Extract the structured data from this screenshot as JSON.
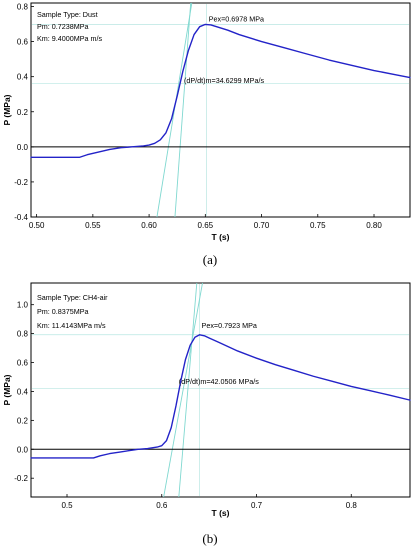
{
  "chart_data": [
    {
      "type": "line",
      "panel_label": "(a)",
      "xlabel": "T (s)",
      "ylabel": "P (MPa)",
      "xlim": [
        0.495,
        0.832
      ],
      "ylim": [
        -0.4,
        0.82
      ],
      "xticks": [
        0.5,
        0.55,
        0.6,
        0.65,
        0.7,
        0.75,
        0.8
      ],
      "xtick_labels": [
        "0.50",
        "0.55",
        "0.60",
        "0.65",
        "0.70",
        "0.75",
        "0.80"
      ],
      "yticks": [
        -0.4,
        -0.2,
        0.0,
        0.2,
        0.4,
        0.6,
        0.8
      ],
      "ytick_labels": [
        "-0.4",
        "-0.2",
        "0.0",
        "0.2",
        "0.4",
        "0.6",
        "0.8"
      ],
      "grid": false,
      "info_lines": [
        "Sample Type: Dust",
        "Pm: 0.7238MPa",
        "Km: 9.4000MPa m/s"
      ],
      "annotations": [
        {
          "text": "Pex=0.6978 MPa",
          "x": 0.653,
          "y": 0.715
        },
        {
          "text": "(dP/dt)m=34.6299 MPa/s",
          "x": 0.631,
          "y": 0.365
        }
      ],
      "zero_line": 0.0,
      "series": [
        {
          "color": "#2323c8",
          "x": [
            0.495,
            0.52,
            0.538,
            0.545,
            0.555,
            0.565,
            0.575,
            0.585,
            0.595,
            0.6,
            0.605,
            0.61,
            0.615,
            0.62,
            0.625,
            0.63,
            0.635,
            0.64,
            0.645,
            0.65,
            0.655,
            0.66,
            0.67,
            0.68,
            0.7,
            0.72,
            0.74,
            0.76,
            0.78,
            0.8,
            0.82,
            0.832
          ],
          "y": [
            -0.06,
            -0.06,
            -0.06,
            -0.045,
            -0.03,
            -0.015,
            -0.005,
            0.0,
            0.005,
            0.01,
            0.02,
            0.04,
            0.08,
            0.16,
            0.29,
            0.43,
            0.55,
            0.64,
            0.685,
            0.698,
            0.695,
            0.685,
            0.665,
            0.64,
            0.6,
            0.565,
            0.53,
            0.495,
            0.465,
            0.435,
            0.41,
            0.395
          ]
        }
      ],
      "tangent_lines": [
        {
          "color": "#80d8d0",
          "x": [
            0.607,
            0.638
          ],
          "y": [
            -0.4,
            0.82
          ]
        },
        {
          "color": "#80d8d0",
          "x": [
            0.623,
            0.637
          ],
          "y": [
            -0.4,
            0.82
          ]
        }
      ],
      "ref_lines": {
        "color": "#b8e6e2",
        "vertical_x": [
          0.651
        ],
        "horizontal_y": [
          0.698,
          0.36
        ]
      }
    },
    {
      "type": "line",
      "panel_label": "(b)",
      "xlabel": "T (s)",
      "ylabel": "P (MPa)",
      "xlim": [
        0.462,
        0.862
      ],
      "ylim": [
        -0.33,
        1.15
      ],
      "xticks": [
        0.5,
        0.6,
        0.7,
        0.8
      ],
      "xtick_labels": [
        "0.5",
        "0.6",
        "0.7",
        "0.8"
      ],
      "yticks": [
        -0.2,
        0.0,
        0.2,
        0.4,
        0.6,
        0.8,
        1.0
      ],
      "ytick_labels": [
        "-0.2",
        "0.0",
        "0.2",
        "0.4",
        "0.6",
        "0.8",
        "1.0"
      ],
      "grid": false,
      "info_lines": [
        "Sample Type: CH4-air",
        "Pm: 0.8375MPa",
        "Km: 11.4143MPa m/s"
      ],
      "annotations": [
        {
          "text": "Pex=0.7923 MPa",
          "x": 0.642,
          "y": 0.838
        },
        {
          "text": "(dP/dt)m=42.0506 MPa/s",
          "x": 0.618,
          "y": 0.45
        }
      ],
      "zero_line": 0.0,
      "series": [
        {
          "color": "#2323c8",
          "x": [
            0.462,
            0.5,
            0.528,
            0.535,
            0.545,
            0.555,
            0.565,
            0.575,
            0.585,
            0.59,
            0.595,
            0.6,
            0.605,
            0.61,
            0.615,
            0.62,
            0.625,
            0.63,
            0.635,
            0.64,
            0.645,
            0.65,
            0.66,
            0.68,
            0.7,
            0.72,
            0.74,
            0.76,
            0.78,
            0.8,
            0.82,
            0.84,
            0.862
          ],
          "y": [
            -0.06,
            -0.06,
            -0.06,
            -0.045,
            -0.03,
            -0.02,
            -0.01,
            0.0,
            0.005,
            0.01,
            0.015,
            0.025,
            0.06,
            0.15,
            0.3,
            0.47,
            0.62,
            0.72,
            0.775,
            0.792,
            0.785,
            0.77,
            0.74,
            0.68,
            0.63,
            0.585,
            0.545,
            0.505,
            0.47,
            0.435,
            0.405,
            0.375,
            0.34
          ]
        }
      ],
      "tangent_lines": [
        {
          "color": "#80d8d0",
          "x": [
            0.602,
            0.643
          ],
          "y": [
            -0.33,
            1.15
          ]
        },
        {
          "color": "#80d8d0",
          "x": [
            0.618,
            0.637
          ],
          "y": [
            -0.33,
            1.15
          ]
        }
      ],
      "ref_lines": {
        "color": "#b8e6e2",
        "vertical_x": [
          0.64
        ],
        "horizontal_y": [
          0.792,
          0.42
        ]
      }
    }
  ]
}
